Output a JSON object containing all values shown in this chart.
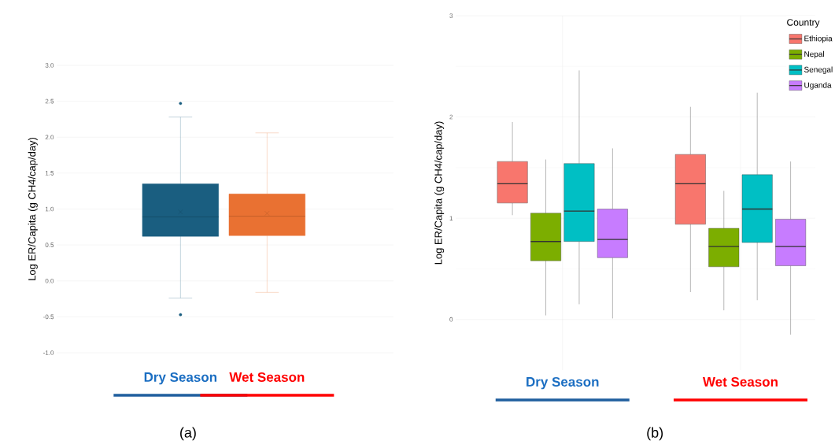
{
  "chart_data": [
    {
      "type": "box",
      "ylabel": "Log ER/Capita (g CH4/cap/day)",
      "categories": [
        "Dry Season",
        "Wet Season"
      ],
      "boxes": [
        {
          "low": -0.24,
          "q1": 0.62,
          "median": 0.89,
          "q3": 1.35,
          "high": 2.28,
          "mean": 0.96,
          "outliers": [
            2.47,
            -0.47
          ]
        },
        {
          "low": -0.16,
          "q1": 0.63,
          "median": 0.9,
          "q3": 1.21,
          "high": 2.06,
          "mean": 0.94
        }
      ],
      "colors": [
        "#1a5e80",
        "#e97132"
      ],
      "ylim": [
        -1,
        3
      ],
      "yticks": [
        {
          "value": -1,
          "label": "-1.0"
        },
        {
          "value": -0.5,
          "label": "-0.5"
        },
        {
          "value": 0,
          "label": "0.0"
        },
        {
          "value": 0.5,
          "label": "0.5"
        },
        {
          "value": 1,
          "label": "1.0"
        },
        {
          "value": 1.5,
          "label": "1.5"
        },
        {
          "value": 2,
          "label": "2.0"
        },
        {
          "value": 2.5,
          "label": "2.5"
        },
        {
          "value": 3,
          "label": "3.0"
        }
      ],
      "grid": "y",
      "annotations": [
        "(a)"
      ]
    },
    {
      "type": "box",
      "ylabel": "Log ER/Capita (g CH4/cap/day)",
      "categories": [
        "Dry Season",
        "Wet Season"
      ],
      "legend_title": "Country",
      "legend": "top right",
      "series": [
        {
          "name": "Ethiopia",
          "color": "#f8766d",
          "boxes": [
            {
              "low": 1.03,
              "q1": 1.15,
              "median": 1.34,
              "q3": 1.56,
              "high": 1.95
            },
            {
              "low": 0.27,
              "q1": 0.94,
              "median": 1.34,
              "q3": 1.63,
              "high": 2.1
            }
          ]
        },
        {
          "name": "Nepal",
          "color": "#7cae00",
          "boxes": [
            {
              "low": 0.04,
              "q1": 0.58,
              "median": 0.77,
              "q3": 1.05,
              "high": 1.58
            },
            {
              "low": 0.09,
              "q1": 0.52,
              "median": 0.72,
              "q3": 0.9,
              "high": 1.27
            }
          ]
        },
        {
          "name": "Senegal",
          "color": "#00bfc4",
          "boxes": [
            {
              "low": 0.15,
              "q1": 0.77,
              "median": 1.07,
              "q3": 1.54,
              "high": 2.46
            },
            {
              "low": 0.19,
              "q1": 0.76,
              "median": 1.09,
              "q3": 1.43,
              "high": 2.24
            }
          ]
        },
        {
          "name": "Uganda",
          "color": "#c77cff",
          "boxes": [
            {
              "low": 0.01,
              "q1": 0.61,
              "median": 0.79,
              "q3": 1.09,
              "high": 1.69
            },
            {
              "low": -0.15,
              "q1": 0.53,
              "median": 0.72,
              "q3": 0.99,
              "high": 1.56
            }
          ]
        }
      ],
      "ylim": [
        -0.5,
        3
      ],
      "yticks": [
        0,
        1,
        2,
        3
      ],
      "grid": true,
      "annotations": [
        "(b)"
      ]
    }
  ]
}
